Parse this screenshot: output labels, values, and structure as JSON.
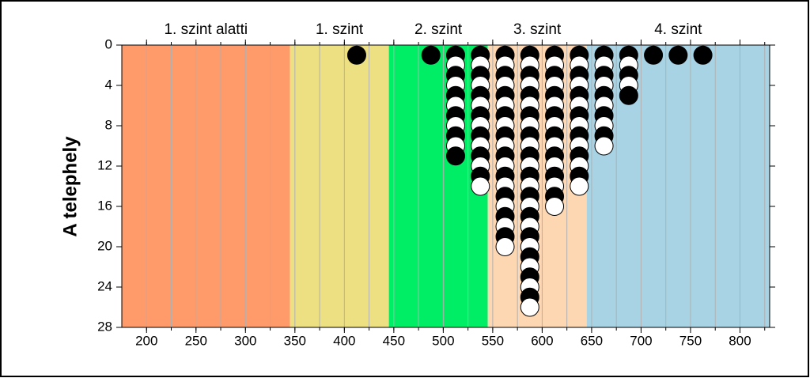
{
  "chart_data": {
    "type": "dot-histogram",
    "ylabel": "A telephely",
    "xlim": [
      175,
      830
    ],
    "ylim": [
      0,
      28
    ],
    "y_inverted": true,
    "xticks": [
      200,
      250,
      300,
      350,
      400,
      450,
      500,
      550,
      600,
      650,
      700,
      750,
      800
    ],
    "yticks": [
      0,
      4,
      8,
      12,
      16,
      20,
      24,
      28
    ],
    "xgrid": [
      200,
      225,
      250,
      275,
      300,
      325,
      350,
      375,
      400,
      425,
      450,
      475,
      500,
      525,
      550,
      575,
      600,
      625,
      650,
      675,
      700,
      725,
      750,
      775,
      800,
      825
    ],
    "regions": [
      {
        "label": "1. szint alatti",
        "from": 175,
        "to": 345,
        "color": "#ff9a6a"
      },
      {
        "label": "1. szint",
        "from": 345,
        "to": 445,
        "color": "#ede083"
      },
      {
        "label": "2. szint",
        "from": 445,
        "to": 545,
        "color": "#00ee66"
      },
      {
        "label": "3. szint",
        "from": 545,
        "to": 645,
        "color": "#fdd6b2"
      },
      {
        "label": "4. szint",
        "from": 645,
        "to": 830,
        "color": "#a7d3e4"
      }
    ],
    "x": [
      412.5,
      487.5,
      512.5,
      537.5,
      562.5,
      587.5,
      612.5,
      637.5,
      662.5,
      687.5,
      712.5,
      737.5,
      762.5
    ],
    "values": [
      1,
      1,
      11,
      14,
      20,
      26,
      16,
      14,
      10,
      5,
      1,
      1,
      1
    ],
    "dot_colors": [
      "#000000",
      "#ffffff"
    ]
  }
}
